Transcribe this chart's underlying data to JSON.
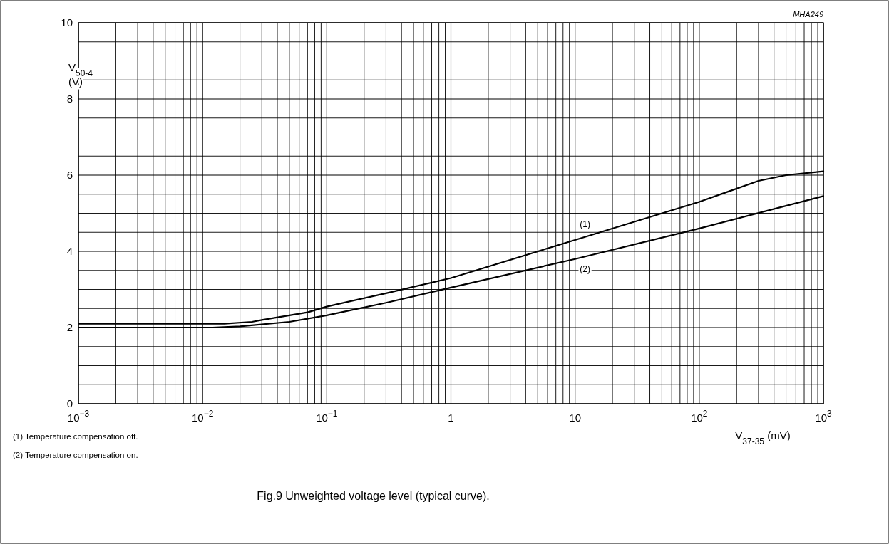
{
  "chart_data": {
    "type": "line",
    "title": "Fig.9  Unweighted voltage level (typical curve).",
    "xlabel": "V$_{37-35}$ (mV)",
    "ylabel": "V$_{50-4}$ (V)",
    "annotations": [
      "MHA249",
      "(1)   Temperature compensation off.",
      "(2)   Temperature compensation on."
    ],
    "log": "x",
    "grid": true,
    "marker": "none",
    "line_style": "solid",
    "xlim": [
      0.001,
      1000
    ],
    "ylim": [
      0,
      10
    ],
    "xticks": [
      {
        "value": 0.001,
        "label": "10$^{−3}$"
      },
      {
        "value": 0.002,
        "label": null
      },
      {
        "value": 0.003,
        "label": null
      },
      {
        "value": 0.004,
        "label": null
      },
      {
        "value": 0.005,
        "label": null
      },
      {
        "value": 0.006,
        "label": null
      },
      {
        "value": 0.007,
        "label": null
      },
      {
        "value": 0.008,
        "label": null
      },
      {
        "value": 0.009,
        "label": null
      },
      {
        "value": 0.01,
        "label": "10$^{−2}$"
      },
      {
        "value": 0.02,
        "label": null
      },
      {
        "value": 0.03,
        "label": null
      },
      {
        "value": 0.04,
        "label": null
      },
      {
        "value": 0.05,
        "label": null
      },
      {
        "value": 0.06,
        "label": null
      },
      {
        "value": 0.07,
        "label": null
      },
      {
        "value": 0.08,
        "label": null
      },
      {
        "value": 0.09,
        "label": null
      },
      {
        "value": 0.1,
        "label": "10$^{−1}$"
      },
      {
        "value": 0.2,
        "label": null
      },
      {
        "value": 0.3,
        "label": null
      },
      {
        "value": 0.4,
        "label": null
      },
      {
        "value": 0.5,
        "label": null
      },
      {
        "value": 0.6,
        "label": null
      },
      {
        "value": 0.7,
        "label": null
      },
      {
        "value": 0.8,
        "label": null
      },
      {
        "value": 0.9,
        "label": null
      },
      1,
      {
        "value": 2,
        "label": null
      },
      {
        "value": 3,
        "label": null
      },
      {
        "value": 4,
        "label": null
      },
      {
        "value": 5,
        "label": null
      },
      {
        "value": 6,
        "label": null
      },
      {
        "value": 7,
        "label": null
      },
      {
        "value": 8,
        "label": null
      },
      {
        "value": 9,
        "label": null
      },
      10,
      {
        "value": 20,
        "label": null
      },
      {
        "value": 30,
        "label": null
      },
      {
        "value": 40,
        "label": null
      },
      {
        "value": 50,
        "label": null
      },
      {
        "value": 60,
        "label": null
      },
      {
        "value": 70,
        "label": null
      },
      {
        "value": 80,
        "label": null
      },
      {
        "value": 90,
        "label": null
      },
      {
        "value": 100,
        "label": "10$^{2}$"
      },
      {
        "value": 200,
        "label": null
      },
      {
        "value": 300,
        "label": null
      },
      {
        "value": 400,
        "label": null
      },
      {
        "value": 500,
        "label": null
      },
      {
        "value": 600,
        "label": null
      },
      {
        "value": 700,
        "label": null
      },
      {
        "value": 800,
        "label": null
      },
      {
        "value": 900,
        "label": null
      },
      {
        "value": 1000,
        "label": "10$^{3}$"
      }
    ],
    "yticks": [
      0,
      {
        "value": 0.5,
        "label": null
      },
      {
        "value": 1,
        "label": null
      },
      {
        "value": 1.5,
        "label": null
      },
      2,
      {
        "value": 2.5,
        "label": null
      },
      {
        "value": 3,
        "label": null
      },
      {
        "value": 3.5,
        "label": null
      },
      4,
      {
        "value": 4.5,
        "label": null
      },
      {
        "value": 5,
        "label": null
      },
      {
        "value": 5.5,
        "label": null
      },
      6,
      {
        "value": 6.5,
        "label": null
      },
      {
        "value": 7,
        "label": null
      },
      {
        "value": 7.5,
        "label": null
      },
      8,
      {
        "value": 8.5,
        "label": null
      },
      {
        "value": 9,
        "label": null
      },
      {
        "value": 9.5,
        "label": null
      },
      10
    ],
    "series": [
      {
        "name": "(1)",
        "color": "#000000",
        "x": [
          0.001,
          0.015,
          0.025,
          0.03,
          0.07,
          0.1,
          0.3,
          1,
          10,
          100,
          300,
          500,
          1000
        ],
        "values": [
          2.1,
          2.1,
          2.15,
          2.2,
          2.4,
          2.55,
          2.9,
          3.3,
          4.3,
          5.3,
          5.85,
          6.0,
          6.1
        ]
      },
      {
        "name": "(2)",
        "color": "#000000",
        "x": [
          0.001,
          0.012,
          0.02,
          0.05,
          0.1,
          0.3,
          1,
          10,
          100,
          1000
        ],
        "values": [
          2.0,
          2.0,
          2.03,
          2.15,
          2.32,
          2.65,
          3.05,
          3.8,
          4.6,
          5.45
        ]
      }
    ]
  }
}
